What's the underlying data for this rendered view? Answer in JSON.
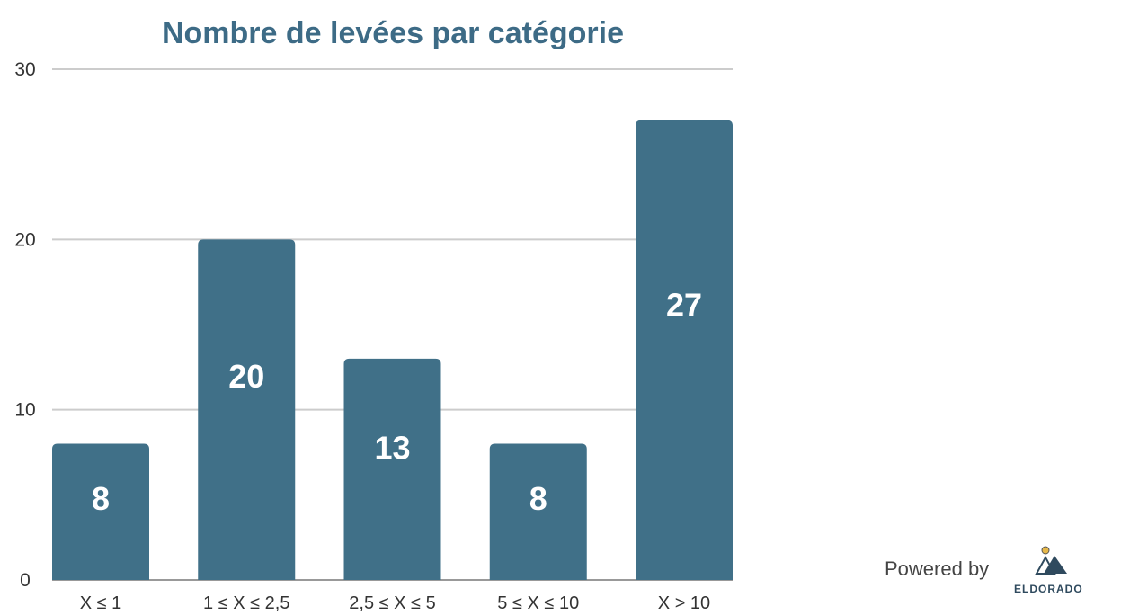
{
  "chart_data": {
    "type": "bar",
    "title": "Nombre de levées par catégorie",
    "categories": [
      "X ≤ 1",
      "1 ≤ X ≤ 2,5",
      "2,5 ≤ X ≤ 5",
      "5 ≤ X ≤ 10",
      "X > 10"
    ],
    "values": [
      8,
      20,
      13,
      8,
      27
    ],
    "y_ticks": [
      "0",
      "10",
      "20",
      "30"
    ],
    "ylim": [
      0,
      30
    ],
    "grid": true,
    "xlabel": "",
    "ylabel": "",
    "data_labels": true
  },
  "colors": {
    "bar": "#407088",
    "title": "#3d6b86",
    "grid": "#cccccc",
    "axis": "#999999"
  },
  "footer": {
    "powered_by": "Powered by",
    "brand": "ELDORADO"
  }
}
